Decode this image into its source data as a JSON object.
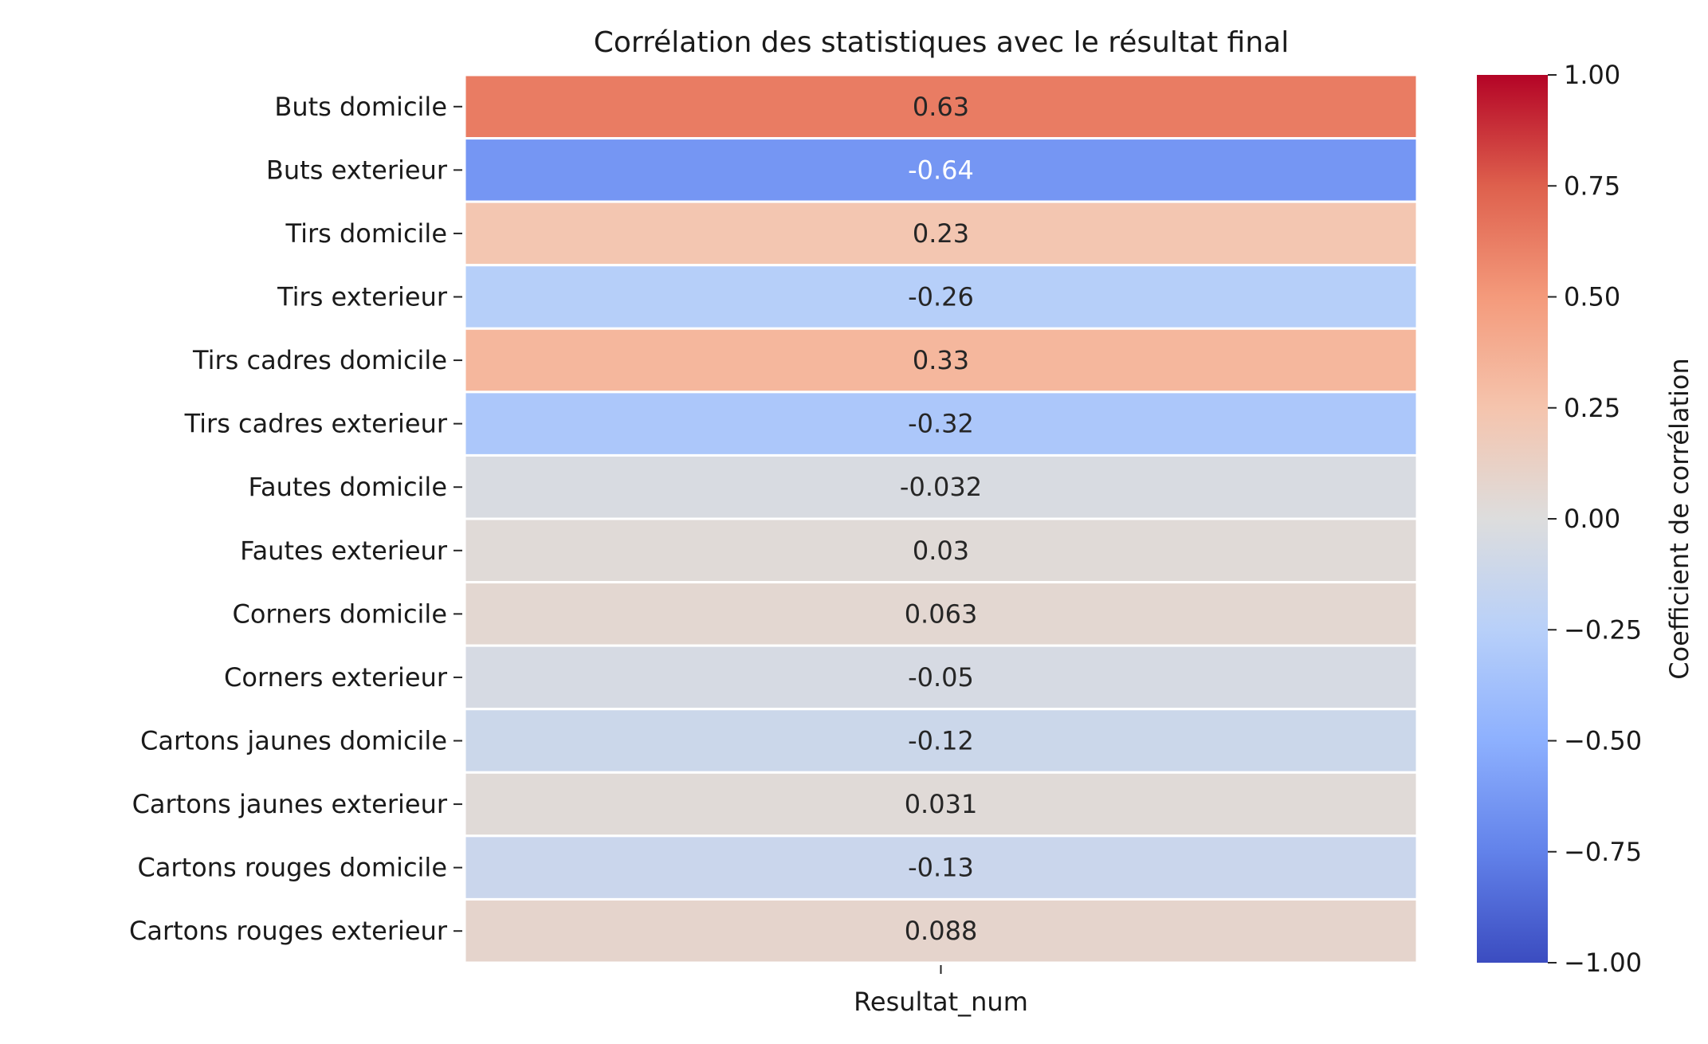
{
  "chart_data": {
    "type": "heatmap",
    "title": "Corrélation des statistiques avec le résultat final",
    "xlabel": "",
    "ylabel": "",
    "columns": [
      "Resultat_num"
    ],
    "rows": [
      "Buts domicile",
      "Buts exterieur",
      "Tirs domicile",
      "Tirs exterieur",
      "Tirs cadres domicile",
      "Tirs cadres exterieur",
      "Fautes domicile",
      "Fautes exterieur",
      "Corners domicile",
      "Corners exterieur",
      "Cartons jaunes domicile",
      "Cartons jaunes exterieur",
      "Cartons rouges domicile",
      "Cartons rouges exterieur"
    ],
    "values": [
      0.63,
      -0.64,
      0.23,
      -0.26,
      0.33,
      -0.32,
      -0.032,
      0.03,
      0.063,
      -0.05,
      -0.12,
      0.031,
      -0.13,
      0.088
    ],
    "value_labels": [
      "0.63",
      "-0.64",
      "0.23",
      "-0.26",
      "0.33",
      "-0.32",
      "-0.032",
      "0.03",
      "0.063",
      "-0.05",
      "-0.12",
      "0.031",
      "-0.13",
      "0.088"
    ],
    "colorscale": "coolwarm",
    "vmin": -1,
    "vmax": 1,
    "colorbar": {
      "label": "Coefficient de corrélation",
      "ticks": [
        1.0,
        0.75,
        0.5,
        0.25,
        0.0,
        -0.25,
        -0.5,
        -0.75,
        -1.0
      ],
      "tick_labels": [
        "1.00",
        "0.75",
        "0.50",
        "0.25",
        "0.00",
        "−0.25",
        "−0.50",
        "−0.75",
        "−1.00"
      ]
    },
    "grid": false,
    "cell_separator_color": "#ffffff"
  }
}
